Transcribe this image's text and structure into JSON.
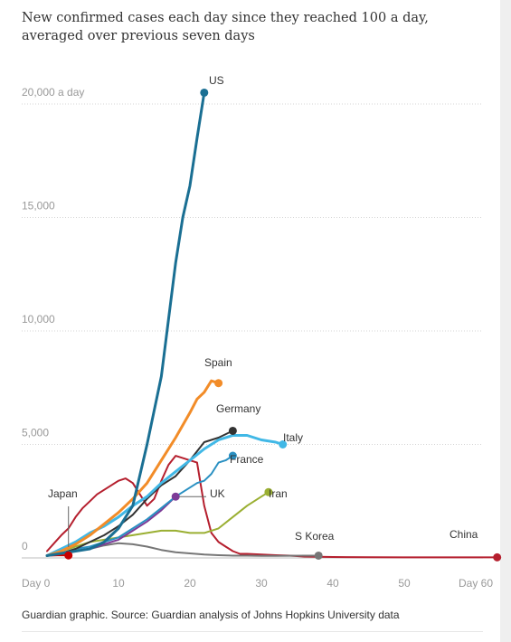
{
  "title": "New confirmed cases each day since they reached 100 a day, averaged over previous seven days",
  "source": "Guardian graphic. Source: Guardian analysis of Johns Hopkins University data",
  "chart_data": {
    "type": "line",
    "title": "New confirmed cases each day since they reached 100 a day, averaged over previous seven days",
    "xlim": [
      0,
      63
    ],
    "ylim": [
      0,
      21000
    ],
    "grid": true,
    "x_ticks": [
      {
        "value": 0,
        "label": "Day 0"
      },
      {
        "value": 10,
        "label": "10"
      },
      {
        "value": 20,
        "label": "20"
      },
      {
        "value": 30,
        "label": "30"
      },
      {
        "value": 40,
        "label": "40"
      },
      {
        "value": 50,
        "label": "50"
      },
      {
        "value": 60,
        "label": "Day 60"
      }
    ],
    "y_ticks": [
      {
        "value": 0,
        "label": "0"
      },
      {
        "value": 5000,
        "label": "5,000"
      },
      {
        "value": 10000,
        "label": "10,000"
      },
      {
        "value": 15000,
        "label": "15,000"
      },
      {
        "value": 20000,
        "label": "20,000 a day"
      }
    ],
    "series": [
      {
        "name": "China",
        "color": "#b51f2e",
        "width": 2,
        "end_marker": true,
        "x": [
          0,
          1,
          2,
          3,
          4,
          5,
          6,
          7,
          8,
          9,
          10,
          11,
          12,
          13,
          14,
          15,
          16,
          17,
          18,
          19,
          20,
          21,
          22,
          23,
          24,
          25,
          26,
          27,
          28,
          30,
          32,
          34,
          36,
          38,
          40,
          45,
          50,
          55,
          60,
          63
        ],
        "y": [
          300,
          650,
          1000,
          1300,
          1800,
          2200,
          2500,
          2800,
          3000,
          3200,
          3400,
          3500,
          3300,
          2800,
          2300,
          2600,
          3400,
          4100,
          4500,
          4400,
          4300,
          4200,
          2300,
          1100,
          700,
          500,
          300,
          180,
          180,
          150,
          120,
          100,
          60,
          50,
          40,
          30,
          25,
          25,
          25,
          25
        ]
      },
      {
        "name": "S Korea",
        "color": "#767676",
        "width": 2,
        "end_marker": true,
        "x": [
          0,
          2,
          4,
          6,
          8,
          10,
          12,
          14,
          16,
          18,
          20,
          22,
          24,
          26,
          28,
          30,
          32,
          34,
          36,
          38
        ],
        "y": [
          100,
          200,
          300,
          400,
          550,
          650,
          600,
          500,
          350,
          250,
          200,
          150,
          120,
          100,
          100,
          90,
          90,
          95,
          100,
          100
        ]
      },
      {
        "name": "Japan",
        "color": "#c70000",
        "width": 2,
        "end_marker": true,
        "x": [
          0,
          1,
          2,
          3
        ],
        "y": [
          100,
          110,
          120,
          110
        ]
      },
      {
        "name": "Iran",
        "color": "#9aaf32",
        "width": 2,
        "end_marker": true,
        "x": [
          0,
          2,
          4,
          6,
          8,
          10,
          12,
          14,
          16,
          18,
          20,
          22,
          24,
          26,
          28,
          30,
          31
        ],
        "y": [
          100,
          300,
          500,
          700,
          800,
          900,
          1000,
          1100,
          1200,
          1200,
          1100,
          1100,
          1300,
          1800,
          2300,
          2700,
          2900
        ]
      },
      {
        "name": "UK",
        "color": "#7d3b97",
        "width": 2,
        "end_marker": true,
        "x": [
          0,
          2,
          4,
          6,
          8,
          10,
          12,
          14,
          16,
          18
        ],
        "y": [
          100,
          200,
          300,
          400,
          600,
          800,
          1200,
          1600,
          2100,
          2700
        ]
      },
      {
        "name": "France",
        "color": "#2a90c2",
        "width": 2,
        "end_marker": true,
        "x": [
          0,
          2,
          4,
          6,
          8,
          10,
          12,
          14,
          16,
          18,
          20,
          21,
          22,
          23,
          24,
          25,
          26
        ],
        "y": [
          100,
          200,
          400,
          500,
          700,
          900,
          1300,
          1700,
          2200,
          2700,
          3100,
          3300,
          3400,
          3700,
          4200,
          4300,
          4500
        ]
      },
      {
        "name": "Germany",
        "color": "#333333",
        "width": 2,
        "end_marker": true,
        "x": [
          0,
          2,
          4,
          6,
          8,
          10,
          12,
          14,
          16,
          18,
          20,
          22,
          24,
          26
        ],
        "y": [
          100,
          200,
          400,
          700,
          1000,
          1400,
          1900,
          2600,
          3200,
          3600,
          4300,
          5100,
          5300,
          5600
        ]
      },
      {
        "name": "Italy",
        "color": "#41b8e6",
        "width": 3,
        "end_marker": true,
        "x": [
          0,
          2,
          4,
          6,
          8,
          10,
          12,
          14,
          16,
          18,
          20,
          22,
          24,
          26,
          28,
          30,
          32,
          33
        ],
        "y": [
          100,
          400,
          700,
          1100,
          1400,
          1800,
          2300,
          2700,
          3300,
          3800,
          4300,
          4800,
          5200,
          5400,
          5400,
          5200,
          5100,
          5000
        ]
      },
      {
        "name": "Spain",
        "color": "#f28c28",
        "width": 3,
        "end_marker": true,
        "x": [
          0,
          2,
          4,
          6,
          8,
          10,
          12,
          14,
          16,
          18,
          20,
          21,
          22,
          23,
          24
        ],
        "y": [
          100,
          300,
          600,
          1000,
          1500,
          2000,
          2600,
          3300,
          4300,
          5300,
          6400,
          7000,
          7300,
          7800,
          7700
        ]
      },
      {
        "name": "US",
        "color": "#1a6f93",
        "width": 3,
        "end_marker": true,
        "x": [
          0,
          2,
          4,
          6,
          8,
          10,
          12,
          14,
          16,
          17,
          18,
          19,
          20,
          21,
          22
        ],
        "y": [
          100,
          200,
          300,
          400,
          700,
          1300,
          2300,
          5000,
          8000,
          10500,
          13000,
          15000,
          16400,
          18500,
          20500
        ]
      }
    ],
    "labels": [
      {
        "text": "US",
        "series": "US"
      },
      {
        "text": "Spain",
        "series": "Spain"
      },
      {
        "text": "Germany",
        "series": "Germany"
      },
      {
        "text": "Italy",
        "series": "Italy"
      },
      {
        "text": "France",
        "series": "France"
      },
      {
        "text": "UK",
        "series": "UK"
      },
      {
        "text": "Iran",
        "series": "Iran"
      },
      {
        "text": "Japan",
        "series": "Japan"
      },
      {
        "text": "S Korea",
        "series": "S Korea"
      },
      {
        "text": "China",
        "series": "China"
      }
    ]
  }
}
